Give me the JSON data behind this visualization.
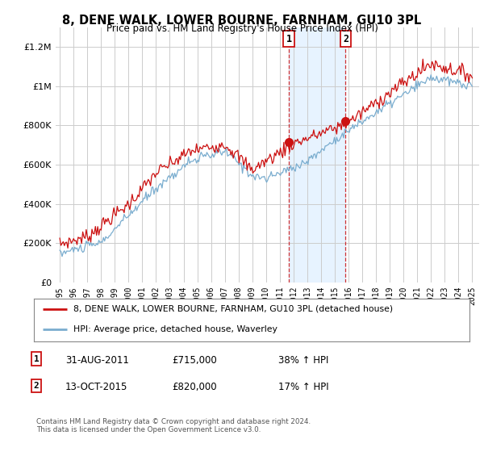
{
  "title": "8, DENE WALK, LOWER BOURNE, FARNHAM, GU10 3PL",
  "subtitle": "Price paid vs. HM Land Registry's House Price Index (HPI)",
  "legend_line1": "8, DENE WALK, LOWER BOURNE, FARNHAM, GU10 3PL (detached house)",
  "legend_line2": "HPI: Average price, detached house, Waverley",
  "annotation1_date": "31-AUG-2011",
  "annotation1_price": "£715,000",
  "annotation1_change": "38% ↑ HPI",
  "annotation2_date": "13-OCT-2015",
  "annotation2_price": "£820,000",
  "annotation2_change": "17% ↑ HPI",
  "footnote": "Contains HM Land Registry data © Crown copyright and database right 2024.\nThis data is licensed under the Open Government Licence v3.0.",
  "sale1_year": 2011.67,
  "sale1_price": 715000,
  "sale2_year": 2015.79,
  "sale2_price": 820000,
  "hpi_color": "#7aadcf",
  "price_color": "#cc1111",
  "shade_color": "#ddeeff",
  "background_color": "#ffffff",
  "plot_bg_color": "#ffffff",
  "ylim_min": 0,
  "ylim_max": 1300000
}
